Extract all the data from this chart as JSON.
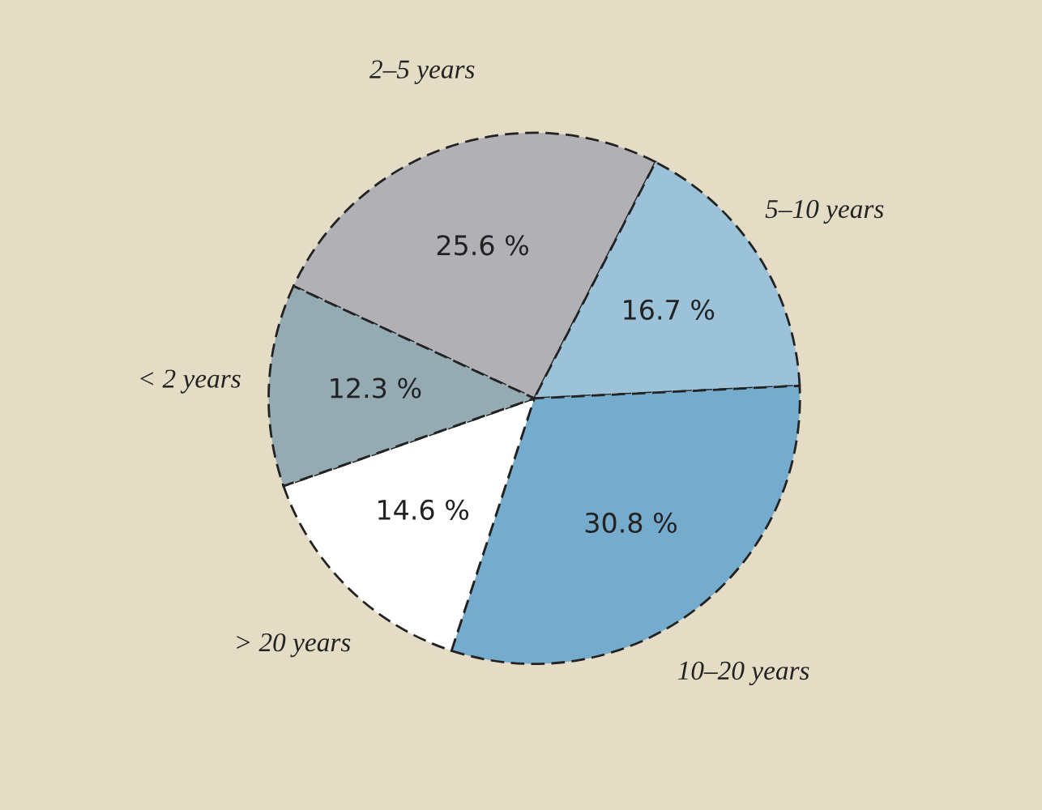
{
  "chart_data": {
    "type": "pie",
    "categories": [
      "2–5 years",
      "5–10 years",
      "10–20 years",
      "> 20 years",
      "< 2 years"
    ],
    "values": [
      25.6,
      16.7,
      30.8,
      14.6,
      12.3
    ],
    "value_labels": [
      "25.6 %",
      "16.7 %",
      "30.8 %",
      "14.6 %",
      "12.3 %"
    ],
    "colors": [
      "#b1b1b5",
      "#9bc2d9",
      "#75acce",
      "#ffffff",
      "#95abb3"
    ]
  }
}
